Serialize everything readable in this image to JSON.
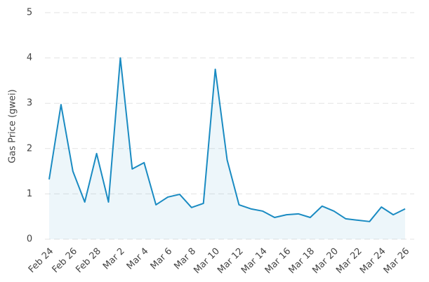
{
  "chart_data": {
    "type": "line",
    "y_label": "Gas Price (gwei)",
    "categories": [
      "Feb 24",
      null,
      "Feb 26",
      null,
      "Feb 28",
      null,
      "Mar 2",
      null,
      "Mar 4",
      null,
      "Mar 6",
      null,
      "Mar 8",
      null,
      "Mar 10",
      null,
      "Mar 12",
      null,
      "Mar 14",
      null,
      "Mar 16",
      null,
      "Mar 18",
      null,
      "Mar 20",
      null,
      "Mar 22",
      null,
      "Mar 24",
      null,
      "Mar 26"
    ],
    "values": [
      1.32,
      2.97,
      1.5,
      0.82,
      1.89,
      0.82,
      4.0,
      1.55,
      1.69,
      0.76,
      0.93,
      0.99,
      0.7,
      0.79,
      3.75,
      1.75,
      0.76,
      0.67,
      0.62,
      0.48,
      0.54,
      0.56,
      0.48,
      0.73,
      0.62,
      0.45,
      0.42,
      0.39,
      0.71,
      0.54,
      0.67
    ],
    "color": "#1a8bc2",
    "area": true,
    "ylim": [
      0,
      5
    ],
    "yticks": [
      0,
      1,
      2,
      3,
      4,
      5
    ],
    "grid": true
  }
}
